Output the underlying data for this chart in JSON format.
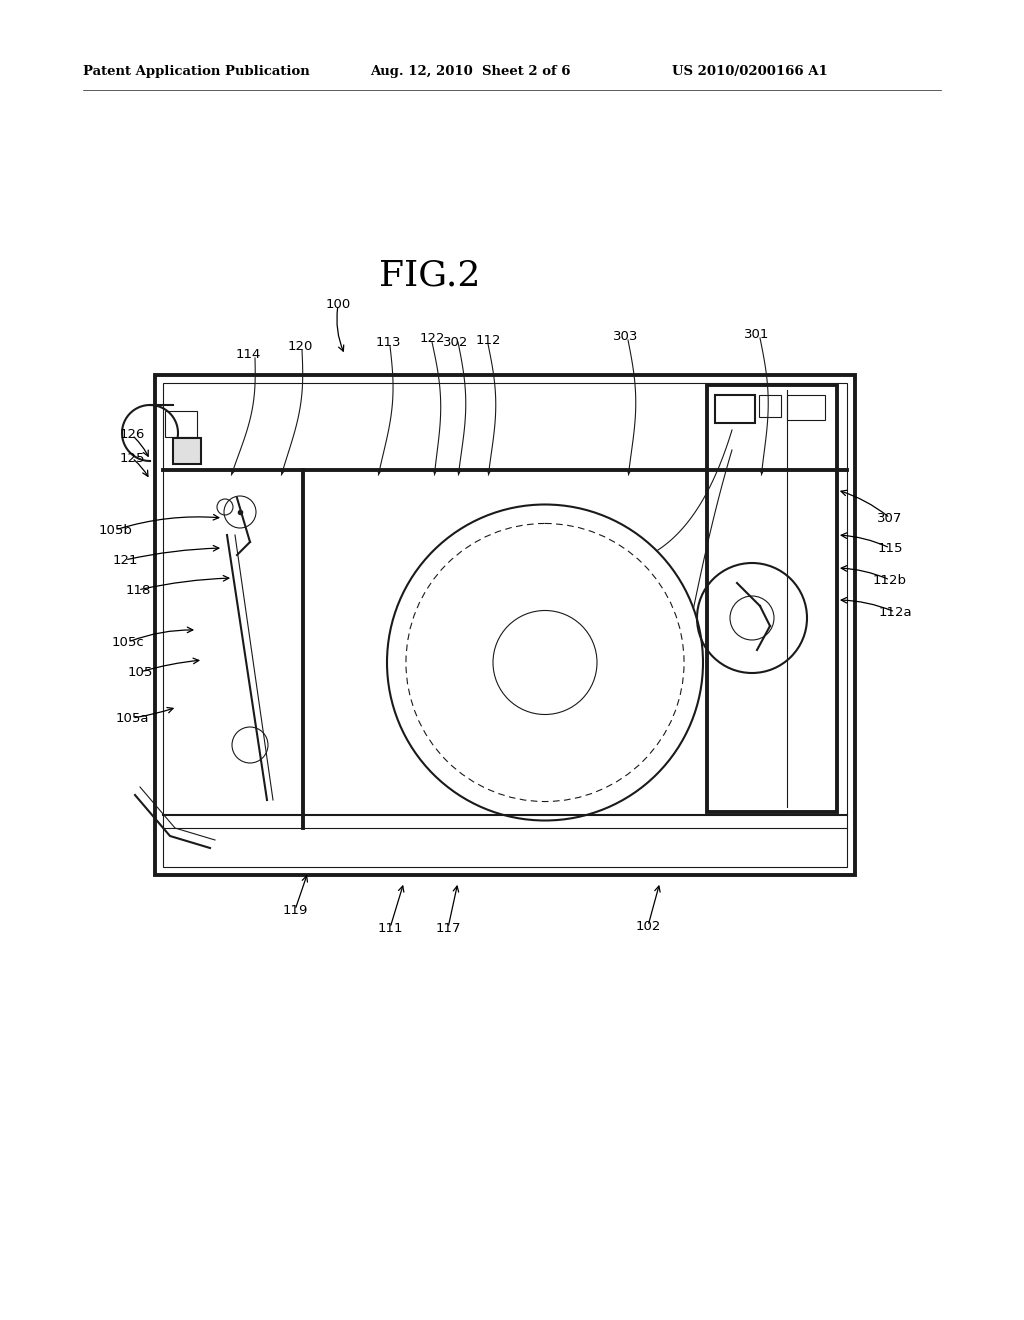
{
  "bg_color": "#ffffff",
  "line_color": "#1a1a1a",
  "header_left": "Patent Application Publication",
  "header_center": "Aug. 12, 2010  Sheet 2 of 6",
  "header_right": "US 2010/0200166 A1",
  "fig_title": "FIG.2"
}
